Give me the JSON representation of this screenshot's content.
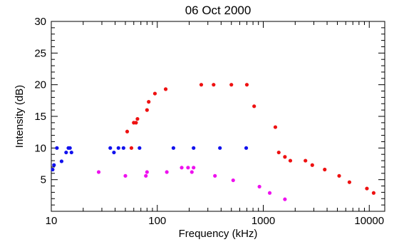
{
  "chart_data": {
    "type": "scatter",
    "title": "06 Oct 2000",
    "xlabel": "Frequency (kHz)",
    "ylabel": "Intensity (dB)",
    "xscale": "log",
    "xlim": [
      10,
      14000
    ],
    "ylim": [
      0,
      30
    ],
    "x_tick_labels": [
      "10",
      "100",
      "1000",
      "10000"
    ],
    "y_tick_labels": [
      "5",
      "10",
      "15",
      "20",
      "25",
      "30"
    ],
    "grid": false,
    "series": [
      {
        "color": "#ee1111",
        "points": [
          [
            52,
            12.6
          ],
          [
            57,
            10.0
          ],
          [
            60,
            14.0
          ],
          [
            63,
            14.0
          ],
          [
            65,
            14.6
          ],
          [
            80,
            16.0
          ],
          [
            83,
            17.3
          ],
          [
            95,
            18.6
          ],
          [
            120,
            19.3
          ],
          [
            260,
            20.0
          ],
          [
            340,
            20.0
          ],
          [
            500,
            20.0
          ],
          [
            700,
            20.0
          ],
          [
            820,
            16.6
          ],
          [
            1300,
            13.3
          ],
          [
            1400,
            9.3
          ],
          [
            1600,
            8.6
          ],
          [
            1800,
            8.0
          ],
          [
            2500,
            8.0
          ],
          [
            2900,
            7.3
          ],
          [
            3800,
            6.6
          ],
          [
            5200,
            5.6
          ],
          [
            6500,
            4.6
          ],
          [
            9500,
            3.6
          ],
          [
            11000,
            2.9
          ]
        ]
      },
      {
        "color": "#1111ee",
        "points": [
          [
            10.3,
            6.6
          ],
          [
            10.6,
            7.3
          ],
          [
            11.3,
            10.0
          ],
          [
            12.5,
            7.9
          ],
          [
            13.8,
            9.3
          ],
          [
            14.5,
            10.0
          ],
          [
            15,
            10.0
          ],
          [
            15.5,
            9.3
          ],
          [
            36,
            10.0
          ],
          [
            39,
            9.3
          ],
          [
            43,
            10.0
          ],
          [
            48,
            10.0
          ],
          [
            68,
            10.0
          ],
          [
            142,
            10.0
          ],
          [
            220,
            10.0
          ],
          [
            390,
            10.0
          ],
          [
            690,
            10.0
          ]
        ]
      },
      {
        "color": "#ee11ee",
        "points": [
          [
            28,
            6.2
          ],
          [
            50,
            5.6
          ],
          [
            78,
            5.6
          ],
          [
            80,
            6.2
          ],
          [
            123,
            6.2
          ],
          [
            170,
            6.9
          ],
          [
            195,
            6.9
          ],
          [
            212,
            6.2
          ],
          [
            220,
            6.9
          ],
          [
            350,
            5.6
          ],
          [
            520,
            4.9
          ],
          [
            920,
            3.9
          ],
          [
            1150,
            2.9
          ],
          [
            1600,
            1.9
          ]
        ]
      }
    ]
  }
}
